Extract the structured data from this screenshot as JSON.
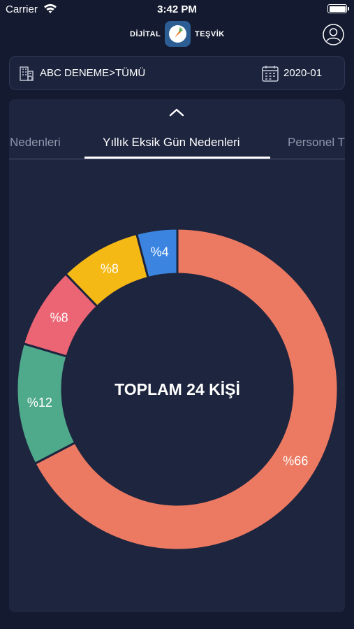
{
  "status_bar": {
    "carrier": "Carrier",
    "time": "3:42 PM"
  },
  "header": {
    "brand_left": "DİJİTAL",
    "brand_right": "TEŞVİK"
  },
  "filter": {
    "company": "ABC DENEME>TÜMÜ",
    "period": "2020-01"
  },
  "tabs": [
    {
      "label": "Nedenleri",
      "state": "partial"
    },
    {
      "label": "Yıllık Eksik Gün Nedenleri",
      "state": "active"
    },
    {
      "label": "Personel T",
      "state": "partial"
    }
  ],
  "chart_data": {
    "type": "pie",
    "center_label": "TOPLAM 24 KİŞİ",
    "slices": [
      {
        "label": "%66",
        "value": 66,
        "color": "#ec7a62"
      },
      {
        "label": "%12",
        "value": 12,
        "color": "#4fa98b"
      },
      {
        "label": "%8",
        "value": 8,
        "color": "#ec6574"
      },
      {
        "label": "%8",
        "value": 8,
        "color": "#f5b915"
      },
      {
        "label": "%4",
        "value": 4,
        "color": "#3b85e1"
      }
    ]
  },
  "colors": {
    "background": "#141b30",
    "panel": "#1e253e",
    "accent_logo": "#2c5d93"
  }
}
